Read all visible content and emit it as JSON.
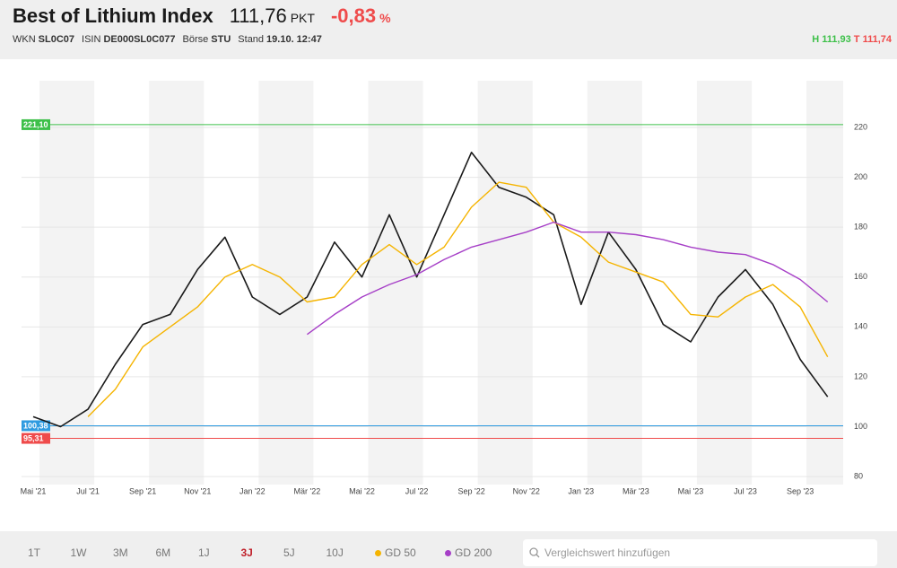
{
  "header": {
    "title": "Best of Lithium Index",
    "price": "111,76",
    "unit": "PKT",
    "change": "-0,83",
    "change_unit": "%",
    "meta": [
      {
        "label": "WKN",
        "value": "SL0C07"
      },
      {
        "label": "ISIN",
        "value": "DE000SL0C077"
      },
      {
        "label": "Börse",
        "value": "STU"
      },
      {
        "label": "Stand",
        "value": "19.10. 12:47"
      }
    ],
    "high": {
      "label": "H",
      "value": "111,93"
    },
    "low": {
      "label": "T",
      "value": "111,74"
    }
  },
  "chart_data": {
    "type": "line",
    "categories": [
      "Mai '21",
      null,
      "Jul '21",
      null,
      "Sep '21",
      null,
      "Nov '21",
      null,
      "Jan '22",
      null,
      "Mär '22",
      null,
      "Mai '22",
      null,
      "Jul '22",
      null,
      "Sep '22",
      null,
      "Nov '22",
      null,
      "Jan '23",
      null,
      "Mär '23",
      null,
      "Mai '23",
      null,
      "Jul '23",
      null,
      "Sep '23",
      null
    ],
    "series": [
      {
        "color": "#1a1a1a",
        "values": [
          104,
          100,
          107,
          125,
          141,
          145,
          163,
          176,
          152,
          145,
          152,
          174,
          160,
          185,
          160,
          185,
          210,
          196,
          192,
          185,
          149,
          178,
          163,
          141,
          134,
          152,
          163,
          149,
          127,
          112
        ]
      },
      {
        "name": "GD 50",
        "color": "#f5b400",
        "values": [
          null,
          null,
          104,
          115,
          132,
          140,
          148,
          160,
          165,
          160,
          150,
          152,
          165,
          173,
          165,
          172,
          188,
          198,
          196,
          182,
          176,
          166,
          162,
          158,
          145,
          144,
          152,
          157,
          148,
          128
        ]
      },
      {
        "name": "GD 200",
        "color": "#a63fc7",
        "values": [
          null,
          null,
          null,
          null,
          null,
          null,
          null,
          null,
          null,
          null,
          137,
          145,
          152,
          157,
          161,
          167,
          172,
          175,
          178,
          182,
          178,
          178,
          177,
          175,
          172,
          170,
          169,
          165,
          159,
          150
        ]
      }
    ],
    "ylim": [
      76.8,
      238.7
    ],
    "yticks": [
      80,
      100,
      120,
      140,
      160,
      180,
      200,
      220
    ],
    "grid": true,
    "reference_lines": [
      {
        "value": 221.1,
        "label": "221,10",
        "color": "#3ec04a"
      },
      {
        "value": 100.38,
        "label": "100,38",
        "color": "#2f9be0"
      },
      {
        "value": 95.31,
        "label": "95,31",
        "color": "#ef4b4b"
      }
    ]
  },
  "ranges": [
    {
      "label": "1T"
    },
    {
      "label": "1W"
    },
    {
      "label": "3M"
    },
    {
      "label": "6M"
    },
    {
      "label": "1J"
    },
    {
      "label": "3J",
      "active": true
    },
    {
      "label": "5J"
    },
    {
      "label": "10J"
    }
  ],
  "search": {
    "placeholder": "Vergleichswert hinzufügen"
  }
}
